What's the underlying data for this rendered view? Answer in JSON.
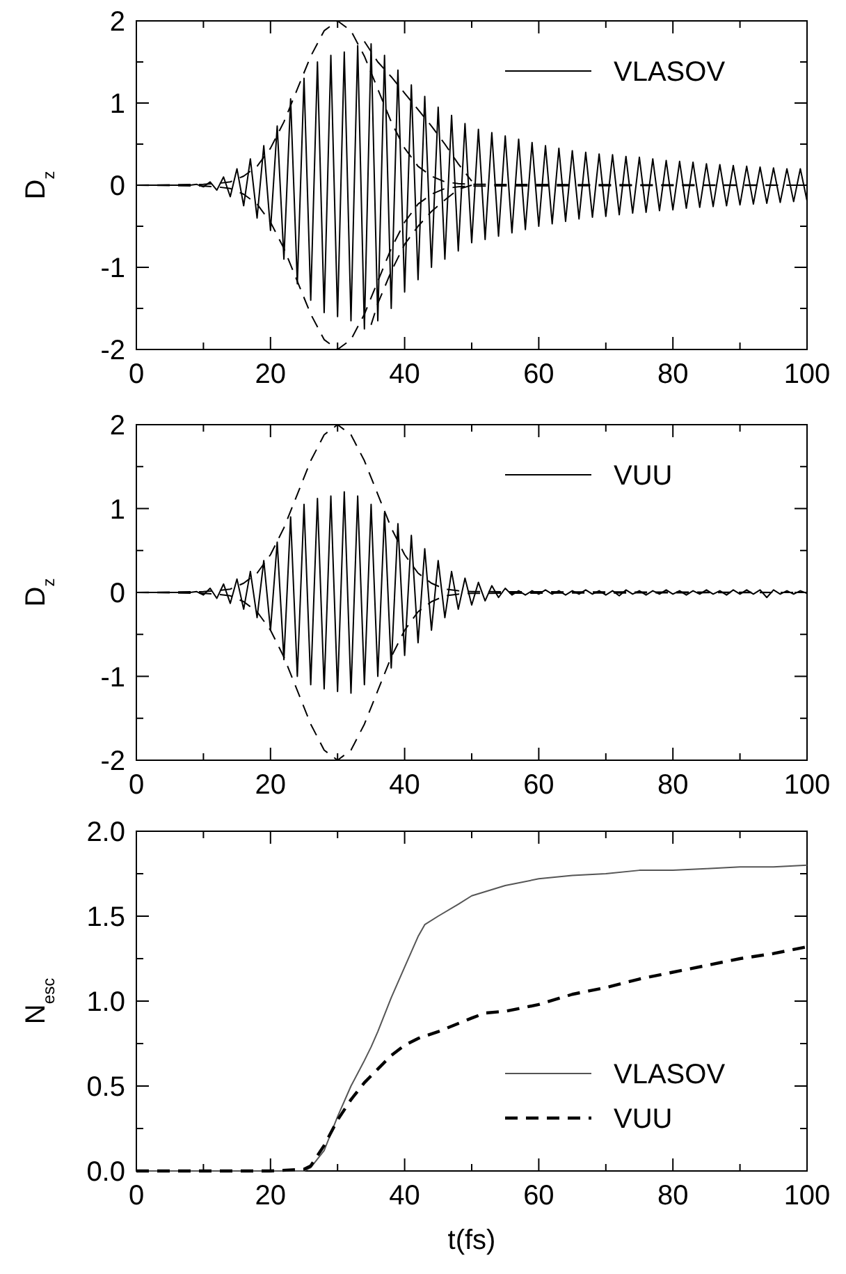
{
  "chart_data": [
    {
      "type": "line",
      "ylabel": "D$_{z}$",
      "xlim": [
        0,
        100
      ],
      "ylim": [
        -2,
        2
      ],
      "xticks": [
        0,
        {
          "value": 10,
          "label": null
        },
        20,
        {
          "value": 30,
          "label": null
        },
        40,
        {
          "value": 50,
          "label": null
        },
        60,
        {
          "value": 70,
          "label": null
        },
        80,
        {
          "value": 90,
          "label": null
        },
        100
      ],
      "yticks": [
        -2,
        {
          "value": -1.5,
          "label": null
        },
        -1,
        {
          "value": -0.5,
          "label": null
        },
        0,
        {
          "value": 0.5,
          "label": null
        },
        1,
        {
          "value": 1.5,
          "label": null
        },
        2
      ],
      "grid": false,
      "legend": "top right",
      "series": [
        {
          "name": "VLASOV",
          "color": "#000000",
          "line_style": "solid",
          "x": [
            0,
            8,
            9,
            10,
            11,
            12,
            13,
            14,
            15,
            16,
            17,
            18,
            19,
            20,
            21,
            22,
            23,
            24,
            25,
            26,
            27,
            28,
            29,
            30,
            31,
            32,
            33,
            34,
            35,
            36,
            37,
            38,
            39,
            40,
            41,
            42,
            43,
            44,
            45,
            46,
            47,
            48,
            49,
            50,
            51,
            52,
            53,
            54,
            55,
            56,
            57,
            58,
            59,
            60,
            61,
            62,
            63,
            64,
            65,
            66,
            67,
            68,
            69,
            70,
            71,
            72,
            73,
            74,
            75,
            76,
            77,
            78,
            79,
            80,
            81,
            82,
            83,
            84,
            85,
            86,
            87,
            88,
            89,
            90,
            91,
            92,
            93,
            94,
            95,
            96,
            97,
            98,
            99,
            100
          ],
          "values": [
            0,
            0,
            0.01,
            -0.02,
            0.04,
            -0.06,
            0.1,
            -0.14,
            0.2,
            -0.25,
            0.32,
            -0.4,
            0.48,
            -0.55,
            0.72,
            -0.9,
            1.05,
            -1.2,
            1.3,
            -1.4,
            1.5,
            -1.55,
            1.58,
            -1.6,
            1.62,
            -1.65,
            1.7,
            -1.75,
            1.72,
            -1.65,
            1.58,
            -1.5,
            1.4,
            -1.3,
            1.22,
            -1.15,
            1.08,
            -1.0,
            0.95,
            -0.9,
            0.85,
            -0.8,
            0.75,
            -0.7,
            0.68,
            -0.66,
            0.64,
            -0.62,
            0.6,
            -0.58,
            0.56,
            -0.54,
            0.52,
            -0.5,
            0.48,
            -0.47,
            0.45,
            -0.44,
            0.42,
            -0.41,
            0.4,
            -0.39,
            0.38,
            -0.38,
            0.37,
            -0.36,
            0.35,
            -0.34,
            0.34,
            -0.33,
            0.32,
            -0.31,
            0.3,
            -0.3,
            0.29,
            -0.28,
            0.28,
            -0.27,
            0.26,
            -0.26,
            0.25,
            -0.25,
            0.24,
            -0.24,
            0.23,
            -0.23,
            0.22,
            -0.22,
            0.21,
            -0.21,
            0.2,
            -0.2,
            0.2,
            -0.19
          ]
        },
        {
          "color": "#000000",
          "line_style": "dashed",
          "x": [
            0,
            10,
            12,
            14,
            16,
            18,
            20,
            22,
            24,
            26,
            28,
            30,
            32,
            34,
            36,
            38,
            40,
            42,
            44,
            46,
            48,
            50,
            100
          ],
          "values": [
            0,
            0.01,
            0.02,
            0.04,
            0.11,
            0.23,
            0.45,
            0.77,
            1.17,
            1.57,
            1.88,
            2,
            1.88,
            1.57,
            1.17,
            0.77,
            0.45,
            0.23,
            0.11,
            0.04,
            0.02,
            0.01,
            0
          ]
        },
        {
          "color": "#000000",
          "line_style": "dashed",
          "x": [
            0,
            10,
            12,
            14,
            16,
            18,
            20,
            22,
            24,
            26,
            28,
            30,
            32,
            34,
            36,
            38,
            40,
            42,
            44,
            46,
            48,
            50,
            100
          ],
          "values": [
            0,
            -0.01,
            -0.02,
            -0.04,
            -0.11,
            -0.23,
            -0.45,
            -0.77,
            -1.17,
            -1.57,
            -1.88,
            -2,
            -1.88,
            -1.57,
            -1.17,
            -0.77,
            -0.45,
            -0.23,
            -0.11,
            -0.04,
            -0.02,
            -0.01,
            0
          ]
        },
        {
          "color": "#000000",
          "line_style": "dashed",
          "x": [
            34,
            36,
            38,
            40,
            42,
            44,
            46,
            48,
            50
          ],
          "values": [
            1.75,
            1.5,
            1.32,
            1.12,
            0.92,
            0.72,
            0.5,
            0.26,
            0.05
          ]
        },
        {
          "color": "#000000",
          "line_style": "dashed",
          "x": [
            35,
            36,
            38,
            40,
            42,
            44,
            46,
            48,
            50
          ],
          "values": [
            -1.7,
            -1.44,
            -1.05,
            -0.72,
            -0.5,
            -0.32,
            -0.18,
            -0.05,
            0
          ]
        }
      ]
    },
    {
      "type": "line",
      "ylabel": "D$_{z}$",
      "xlim": [
        0,
        100
      ],
      "ylim": [
        -2,
        2
      ],
      "xticks": [
        0,
        {
          "value": 10,
          "label": null
        },
        20,
        {
          "value": 30,
          "label": null
        },
        40,
        {
          "value": 50,
          "label": null
        },
        60,
        {
          "value": 70,
          "label": null
        },
        80,
        {
          "value": 90,
          "label": null
        },
        100
      ],
      "yticks": [
        -2,
        {
          "value": -1.5,
          "label": null
        },
        -1,
        {
          "value": -0.5,
          "label": null
        },
        0,
        {
          "value": 0.5,
          "label": null
        },
        1,
        {
          "value": 1.5,
          "label": null
        },
        2
      ],
      "grid": false,
      "legend": "top right",
      "series": [
        {
          "name": "VUU",
          "color": "#000000",
          "line_style": "solid",
          "x": [
            0,
            8,
            9,
            10,
            11,
            12,
            13,
            14,
            15,
            16,
            17,
            18,
            19,
            20,
            21,
            22,
            23,
            24,
            25,
            26,
            27,
            28,
            29,
            30,
            31,
            32,
            33,
            34,
            35,
            36,
            37,
            38,
            39,
            40,
            41,
            42,
            43,
            44,
            45,
            46,
            47,
            48,
            49,
            50,
            51,
            52,
            53,
            54,
            55,
            56,
            57,
            58,
            59,
            60,
            61,
            62,
            63,
            64,
            65,
            66,
            67,
            68,
            69,
            70,
            71,
            72,
            73,
            74,
            75,
            76,
            77,
            78,
            79,
            80,
            81,
            82,
            83,
            84,
            85,
            86,
            87,
            88,
            89,
            90,
            91,
            92,
            93,
            94,
            95,
            96,
            97,
            98,
            99,
            100
          ],
          "values": [
            0,
            0,
            0.01,
            -0.03,
            0.05,
            -0.07,
            0.1,
            -0.13,
            0.16,
            -0.2,
            0.25,
            -0.3,
            0.38,
            -0.45,
            0.6,
            -0.8,
            0.9,
            -1.0,
            1.05,
            -1.1,
            1.12,
            -1.15,
            1.15,
            -1.18,
            1.2,
            -1.2,
            1.15,
            -1.1,
            1.05,
            -1.0,
            0.95,
            -0.9,
            0.82,
            -0.75,
            0.68,
            -0.6,
            0.52,
            -0.45,
            0.38,
            -0.3,
            0.25,
            -0.2,
            0.17,
            -0.15,
            0.12,
            -0.1,
            0.08,
            -0.06,
            0.05,
            -0.03,
            0.02,
            -0.03,
            0.02,
            -0.02,
            0.03,
            -0.02,
            0.02,
            -0.03,
            0.02,
            -0.02,
            0.03,
            -0.02,
            0.02,
            -0.03,
            0.02,
            -0.04,
            0.03,
            -0.02,
            0.02,
            -0.03,
            0.02,
            -0.02,
            0.03,
            -0.02,
            0.02,
            -0.03,
            0.02,
            -0.02,
            0.03,
            -0.02,
            0.02,
            -0.03,
            0.03,
            -0.02,
            0.03,
            -0.02,
            0.03,
            -0.06,
            0.03,
            -0.02,
            0.02,
            -0.02,
            0.02,
            -0.01
          ]
        },
        {
          "color": "#000000",
          "line_style": "dashed",
          "x": [
            0,
            10,
            12,
            14,
            16,
            18,
            20,
            22,
            24,
            26,
            28,
            30,
            32,
            34,
            36,
            38,
            40,
            42,
            44,
            46,
            48,
            50,
            100
          ],
          "values": [
            0,
            0.01,
            0.02,
            0.04,
            0.11,
            0.23,
            0.45,
            0.77,
            1.17,
            1.57,
            1.88,
            2,
            1.88,
            1.57,
            1.17,
            0.77,
            0.45,
            0.23,
            0.11,
            0.04,
            0.02,
            0.01,
            0
          ]
        },
        {
          "color": "#000000",
          "line_style": "dashed",
          "x": [
            0,
            10,
            12,
            14,
            16,
            18,
            20,
            22,
            24,
            26,
            28,
            30,
            32,
            34,
            36,
            38,
            40,
            42,
            44,
            46,
            48,
            50,
            100
          ],
          "values": [
            0,
            -0.01,
            -0.02,
            -0.04,
            -0.11,
            -0.23,
            -0.45,
            -0.77,
            -1.17,
            -1.57,
            -1.88,
            -2,
            -1.88,
            -1.57,
            -1.17,
            -0.77,
            -0.45,
            -0.23,
            -0.11,
            -0.04,
            -0.02,
            -0.01,
            0
          ]
        }
      ]
    },
    {
      "type": "line",
      "xlabel": "t(fs)",
      "ylabel": "N$_{esc}$",
      "xlim": [
        0,
        100
      ],
      "ylim": [
        0,
        2
      ],
      "xticks": [
        0,
        {
          "value": 10,
          "label": null
        },
        20,
        {
          "value": 30,
          "label": null
        },
        40,
        {
          "value": 50,
          "label": null
        },
        60,
        {
          "value": 70,
          "label": null
        },
        80,
        {
          "value": 90,
          "label": null
        },
        100
      ],
      "yticks": [
        {
          "value": 0,
          "label": "0.0"
        },
        {
          "value": 0.25,
          "label": null
        },
        0.5,
        {
          "value": 0.75,
          "label": null
        },
        {
          "value": 1,
          "label": "1.0"
        },
        {
          "value": 1.25,
          "label": null
        },
        1.5,
        {
          "value": 1.75,
          "label": null
        },
        {
          "value": 2,
          "label": "2.0"
        }
      ],
      "grid": false,
      "legend": "bottom right",
      "series": [
        {
          "name": "VLASOV",
          "color": "#555555",
          "line_style": "solid",
          "x": [
            0,
            10,
            20,
            25,
            26,
            28,
            30,
            32,
            34,
            35,
            36,
            38,
            40,
            42,
            43,
            45,
            48,
            50,
            55,
            60,
            65,
            70,
            75,
            80,
            85,
            90,
            95,
            100
          ],
          "values": [
            0,
            0,
            0,
            0,
            0.02,
            0.12,
            0.32,
            0.5,
            0.65,
            0.73,
            0.82,
            1.02,
            1.2,
            1.38,
            1.45,
            1.5,
            1.57,
            1.62,
            1.68,
            1.72,
            1.74,
            1.75,
            1.77,
            1.77,
            1.78,
            1.79,
            1.79,
            1.8
          ]
        },
        {
          "name": "VUU",
          "color": "#000000",
          "line_style": "dashed",
          "x": [
            0,
            10,
            20,
            25,
            26,
            28,
            30,
            32,
            34,
            36,
            38,
            40,
            42,
            45,
            50,
            52,
            55,
            60,
            65,
            70,
            75,
            80,
            85,
            90,
            95,
            100
          ],
          "values": [
            0,
            0,
            0,
            0.01,
            0.03,
            0.15,
            0.3,
            0.42,
            0.52,
            0.6,
            0.68,
            0.74,
            0.78,
            0.82,
            0.9,
            0.93,
            0.94,
            0.98,
            1.04,
            1.08,
            1.13,
            1.17,
            1.21,
            1.25,
            1.28,
            1.32
          ]
        }
      ]
    }
  ]
}
